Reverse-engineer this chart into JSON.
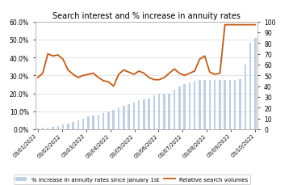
{
  "title": "Search interest and % increase in annuity rates",
  "x_labels": [
    "03/01/2022",
    "03/02/2022",
    "03/03/2022",
    "03/04/2022",
    "03/05/2022",
    "03/06/2022",
    "03/07/2022",
    "03/08/2022",
    "03/09/2022",
    "03/10/2022"
  ],
  "bar_values": [
    0.5,
    1.0,
    1.0,
    1.5,
    2.0,
    2.5,
    3.0,
    4.0,
    5.0,
    6.0,
    7.0,
    7.5,
    8.0,
    9.0,
    10.0,
    11.0,
    12.0,
    13.0,
    14.0,
    15.0,
    16.0,
    16.5,
    17.0,
    19.0,
    20.0,
    20.0,
    20.0,
    22.0,
    24.0,
    25.0,
    26.0,
    27.0,
    27.5,
    27.5,
    27.5,
    27.5,
    27.5,
    27.5,
    27.5,
    27.5,
    28.0,
    36.0,
    48.0,
    51.0
  ],
  "line_values": [
    48,
    52,
    70,
    68,
    69,
    65,
    55,
    51,
    48,
    50,
    51,
    52,
    48,
    45,
    44,
    40,
    51,
    55,
    53,
    51,
    54,
    52,
    48,
    46,
    46,
    48,
    52,
    56,
    52,
    50,
    52,
    54,
    65,
    68,
    53,
    51,
    52,
    97,
    97,
    97,
    97,
    97,
    97,
    97
  ],
  "bar_color": "#bdd0e5",
  "line_color": "#c55a11",
  "bar_label": "% increase in annuity rates since January 1st",
  "line_label": "Relative search volumes",
  "left_ylim": [
    0,
    60
  ],
  "left_yticks": [
    0,
    10,
    20,
    30,
    40,
    50,
    60
  ],
  "left_yticklabels": [
    "0.0%",
    "10.0%",
    "20.0%",
    "30.0%",
    "40.0%",
    "50.0%",
    "60.0%"
  ],
  "right_ylim": [
    0,
    100
  ],
  "right_yticks": [
    0,
    10,
    20,
    30,
    40,
    50,
    60,
    70,
    80,
    90,
    100
  ],
  "background_color": "#ffffff",
  "grid_color": "#d9d9d9"
}
